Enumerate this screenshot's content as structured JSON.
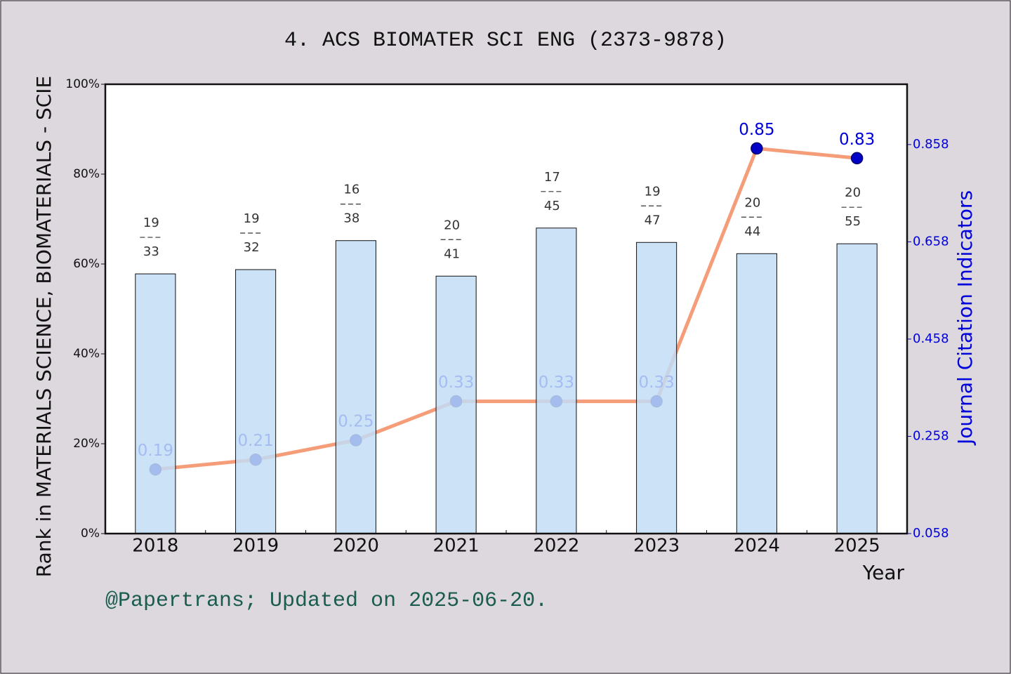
{
  "chart_data": {
    "type": "bar_line",
    "title": "4. ACS BIOMATER SCI ENG (2373-9878)",
    "y_label": "Rank in MATERIALS SCIENCE, BIOMATERIALS - SCIE",
    "y2_label": "Journal Citation Indicators",
    "x_label": "Year",
    "footnote": "@Papertrans; Updated on 2025-06-20.",
    "categories": [
      "2018",
      "2019",
      "2020",
      "2021",
      "2022",
      "2023",
      "2024",
      "2025"
    ],
    "series": [
      {
        "type": "bar",
        "color": "#c2ddf6",
        "values": [
          57.8,
          58.75,
          65.2,
          57.3,
          68.0,
          64.8,
          62.3,
          64.5
        ],
        "ranks": [
          19,
          19,
          16,
          20,
          17,
          19,
          20,
          20
        ],
        "totals": [
          33,
          32,
          38,
          41,
          45,
          47,
          44,
          55
        ]
      },
      {
        "type": "line",
        "axis": "y2",
        "color": "#f59c78",
        "marker_color": "#0000c8",
        "label_color": "#0000dd",
        "values": [
          0.19,
          0.21,
          0.25,
          0.33,
          0.33,
          0.33,
          0.85,
          0.83
        ]
      }
    ],
    "ylim": [
      0,
      100
    ],
    "yticks": [
      {
        "value": 0,
        "label": "0%"
      },
      {
        "value": 20,
        "label": "20%"
      },
      {
        "value": 40,
        "label": "40%"
      },
      {
        "value": 60,
        "label": "60%"
      },
      {
        "value": 80,
        "label": "80%"
      },
      {
        "value": 100,
        "label": "100%"
      }
    ],
    "y2lim": [
      0.058,
      0.982
    ],
    "y2ticks": [
      0.058,
      0.258,
      0.458,
      0.658,
      0.858
    ]
  }
}
